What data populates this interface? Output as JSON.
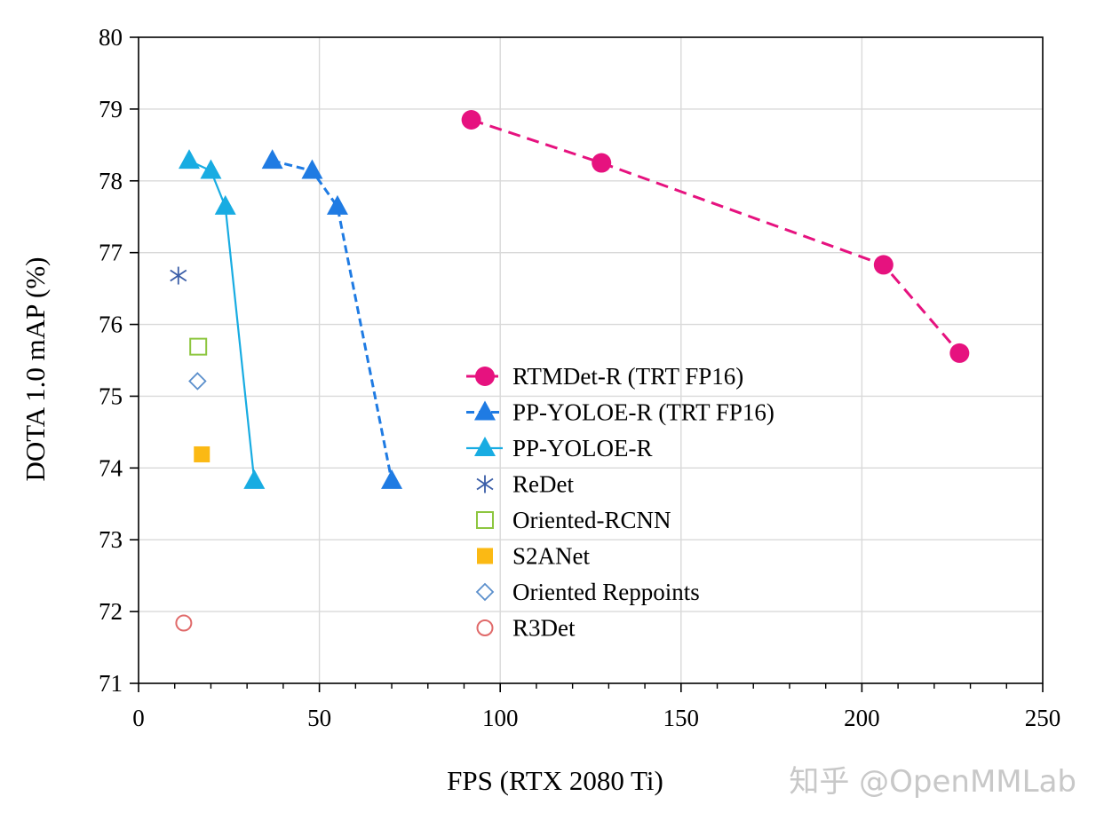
{
  "chart_data": {
    "type": "scatter",
    "title": "",
    "xlabel": "FPS (RTX 2080 Ti)",
    "ylabel": "DOTA 1.0 mAP (%)",
    "xlim": [
      0,
      250
    ],
    "ylim": [
      71,
      80
    ],
    "xticks": [
      0,
      50,
      100,
      150,
      200,
      250
    ],
    "yticks": [
      71,
      72,
      73,
      74,
      75,
      76,
      77,
      78,
      79,
      80
    ],
    "x_tick_labels": [
      "0",
      "50",
      "100",
      "150",
      "200",
      "250"
    ],
    "y_tick_labels": [
      "71",
      "72",
      "73",
      "74",
      "75",
      "76",
      "77",
      "78",
      "79",
      "80"
    ],
    "grid": true,
    "legend_position": "center",
    "series": [
      {
        "name": "RTMDet-R (TRT FP16)",
        "marker": "circle",
        "line": "dashed",
        "color": "#e6127f",
        "x": [
          92,
          128,
          206,
          227
        ],
        "y": [
          78.85,
          78.25,
          76.83,
          75.6
        ]
      },
      {
        "name": "PP-YOLOE-R (TRT FP16)",
        "marker": "triangle",
        "line": "dashed",
        "color": "#1f7be3",
        "x": [
          37,
          48,
          55,
          70
        ],
        "y": [
          78.28,
          78.14,
          77.64,
          73.82
        ]
      },
      {
        "name": "PP-YOLOE-R",
        "marker": "triangle",
        "line": "solid",
        "color": "#18ace2",
        "x": [
          14,
          20,
          24,
          32
        ],
        "y": [
          78.28,
          78.14,
          77.64,
          73.82
        ]
      },
      {
        "name": "ReDet",
        "marker": "asterisk",
        "line": "none",
        "color": "#3b5ea8",
        "x": [
          11
        ],
        "y": [
          76.68
        ]
      },
      {
        "name": "Oriented-RCNN",
        "marker": "square-open",
        "line": "none",
        "color": "#8dc63f",
        "x": [
          16.5
        ],
        "y": [
          75.69
        ]
      },
      {
        "name": "S2ANet",
        "marker": "square-filled",
        "line": "none",
        "color": "#fbb914",
        "x": [
          17.5
        ],
        "y": [
          74.19
        ]
      },
      {
        "name": "Oriented Reppoints",
        "marker": "diamond-open",
        "line": "none",
        "color": "#5b8fcc",
        "x": [
          16.3
        ],
        "y": [
          75.21
        ]
      },
      {
        "name": "R3Det",
        "marker": "circle-open",
        "line": "none",
        "color": "#e06a6a",
        "x": [
          12.5
        ],
        "y": [
          71.84
        ]
      }
    ]
  },
  "watermark": "知乎 @OpenMMLab"
}
